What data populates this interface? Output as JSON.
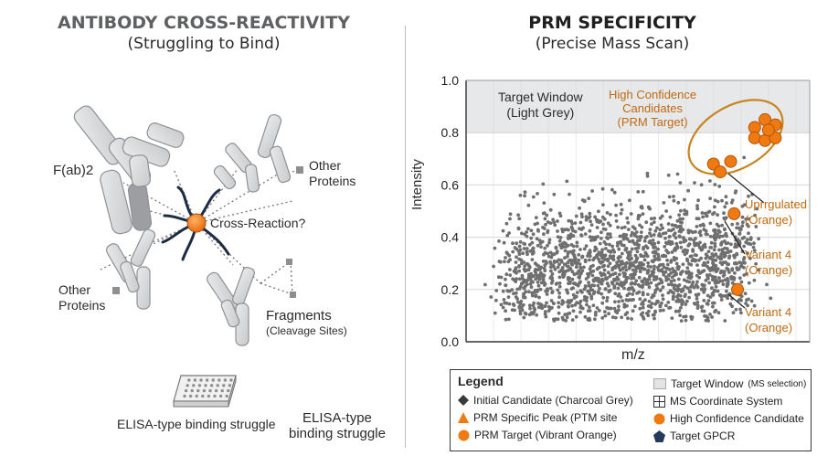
{
  "left": {
    "title": "ANTIBODY CROSS-REACTIVITY",
    "subtitle": "(Struggling to Bind)",
    "labels": {
      "fab2": "F(ab)2",
      "other_proteins_top": "Other\nProteins",
      "cross_reaction": "Cross-Reaction?",
      "other_proteins_bottom": "Other\nProteins",
      "fragments": "Fragments",
      "cleavage": "(Cleavage Sites)",
      "elisa_caption": "ELISA-type binding struggle",
      "elisa_caption_right": "ELISA-type\nbinding struggle"
    },
    "icons": [
      "antibody-icon",
      "elisa-plate-icon"
    ]
  },
  "right": {
    "title": "PRM SPECIFICITY",
    "subtitle": "(Precise Mass Scan)",
    "annotations": {
      "target_window": "Target Window\n(Light Grey)",
      "high_confidence": "High Confidence\nCandidates\n(PRM Target)",
      "upregulated": "Uprrgulated\n(Orange)",
      "variant_a": "Variant 4\n(Orange)",
      "variant_b": "Variant 4\n(Orange)"
    },
    "legend": {
      "title": "Legend",
      "items": [
        {
          "icon": "diamond-icon",
          "label": "Initial Candidate (Charcoal Grey)"
        },
        {
          "icon": "triangle-icon",
          "label": "PRM Specific Peak (PTM site"
        },
        {
          "icon": "circle-icon",
          "label": "PRM Target (Vibrant Orange)"
        },
        {
          "icon": "square-icon",
          "label": "Target Window",
          "suffix": "(MS selection)"
        },
        {
          "icon": "grid-icon",
          "label": "MS Coordinate System"
        },
        {
          "icon": "circle-icon",
          "label": "High Confidence Candidate"
        },
        {
          "icon": "pentagon-icon",
          "label": "Target GPCR"
        }
      ]
    }
  },
  "chart_data": {
    "type": "scatter",
    "xlabel": "m/z",
    "ylabel": "Intensity",
    "ylim": [
      0.0,
      1.0
    ],
    "yticks": [
      "0.0",
      "0.2",
      "0.4",
      "0.6",
      "0.8",
      "1.0"
    ],
    "grid": true,
    "target_window": {
      "y_range": [
        0.8,
        1.0
      ],
      "color": "#e6e8ea"
    },
    "background_scatter": {
      "description_color": "#6e6e6e",
      "count": 1900,
      "y_center": 0.25
    },
    "series": [
      {
        "role": "high-confidence",
        "color": "#f07a12",
        "points": [
          [
            0.84,
            0.82
          ],
          [
            0.87,
            0.85
          ],
          [
            0.9,
            0.83
          ],
          [
            0.84,
            0.78
          ],
          [
            0.87,
            0.77
          ],
          [
            0.9,
            0.78
          ],
          [
            0.88,
            0.81
          ]
        ]
      },
      {
        "role": "upregulated",
        "color": "#f07a12",
        "points": [
          [
            0.72,
            0.68
          ],
          [
            0.74,
            0.65
          ],
          [
            0.77,
            0.69
          ]
        ]
      },
      {
        "role": "variant",
        "color": "#f07a12",
        "points": [
          [
            0.78,
            0.49
          ],
          [
            0.79,
            0.2
          ]
        ]
      }
    ],
    "colors": {
      "accent": "#f07a12",
      "dots": "#6f6f6f",
      "outline": "#c8841f"
    }
  }
}
